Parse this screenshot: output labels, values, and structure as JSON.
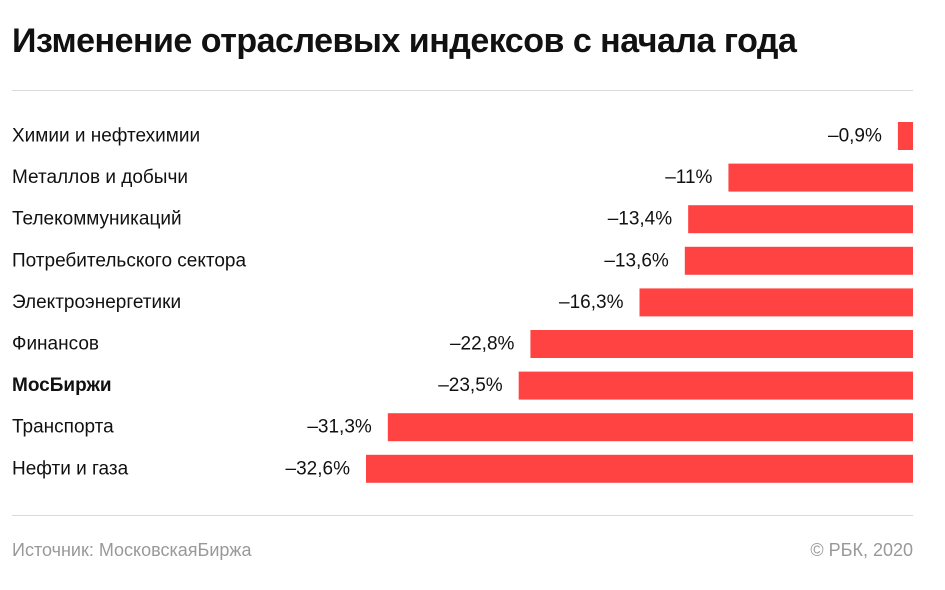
{
  "header": {
    "title": "Изменение отраслевых индексов с начала года"
  },
  "footer": {
    "source": "Источник: МосковскаяБиржа",
    "copyright": "© РБК, 2020"
  },
  "chart_data": {
    "type": "bar",
    "orientation": "horizontal",
    "title": "Изменение отраслевых индексов с начала года",
    "xlabel": "",
    "ylabel": "",
    "unit": "%",
    "xlim": [
      -32.6,
      0
    ],
    "grid": false,
    "bar_color": "#ff4343",
    "categories": [
      "Химии и нефтехимии",
      "Металлов и добычи",
      "Телекоммуникаций",
      "Потребительского сектора",
      "Электроэнергетики",
      "Финансов",
      "МосБиржи",
      "Транспорта",
      "Нефти и газа"
    ],
    "values": [
      -0.9,
      -11,
      -13.4,
      -13.6,
      -16.3,
      -22.8,
      -23.5,
      -31.3,
      -32.6
    ],
    "value_labels": [
      "–0,9%",
      "–11%",
      "–13,4%",
      "–13,6%",
      "–16,3%",
      "–22,8%",
      "–23,5%",
      "–31,3%",
      "–32,6%"
    ],
    "highlighted": [
      "МосБиржи"
    ]
  }
}
